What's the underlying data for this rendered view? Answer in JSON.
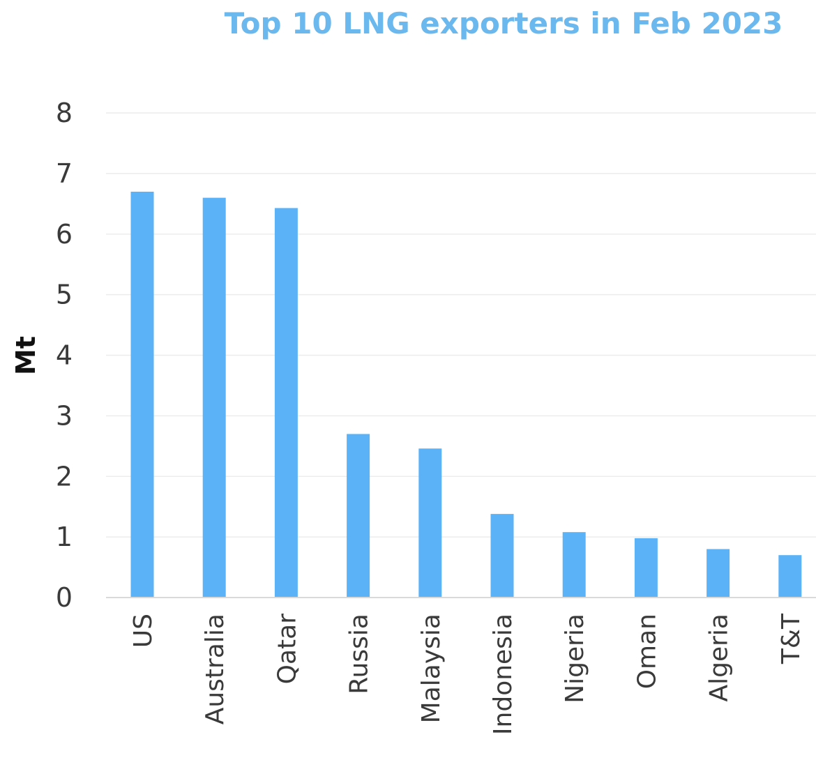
{
  "chart_data": {
    "type": "bar",
    "title": "Top 10 LNG exporters in Feb 2023",
    "ylabel": "Mt",
    "xlabel": "",
    "categories": [
      "US",
      "Australia",
      "Qatar",
      "Russia",
      "Malaysia",
      "Indonesia",
      "Nigeria",
      "Oman",
      "Algeria",
      "T&T"
    ],
    "values": [
      6.7,
      6.6,
      6.43,
      2.7,
      2.46,
      1.38,
      1.08,
      0.98,
      0.8,
      0.7
    ],
    "ylim": [
      0,
      8
    ],
    "yticks": [
      "0",
      "1",
      "2",
      "3",
      "4",
      "5",
      "6",
      "7",
      "8"
    ],
    "grid": true,
    "legend": "none",
    "colors": {
      "bar": "#5cb2f7",
      "title": "#6ab8ee",
      "grid": "#ececec",
      "axis": "#d9d9d9"
    }
  }
}
